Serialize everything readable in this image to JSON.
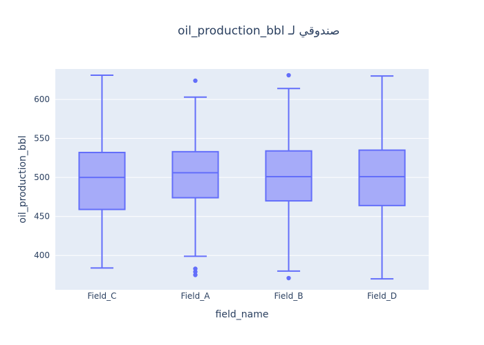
{
  "chart_data": {
    "type": "box",
    "title": "صندوقي لـ oil_production_bbl",
    "xlabel": "field_name",
    "ylabel": "oil_production_bbl",
    "categories": [
      "Field_C",
      "Field_A",
      "Field_B",
      "Field_D"
    ],
    "ylim": [
      356,
      639
    ],
    "yticks": [
      400,
      450,
      500,
      550,
      600
    ],
    "grid": true,
    "legend": "none",
    "boxes": [
      {
        "name": "Field_C",
        "lowerfence": 384,
        "q1": 459,
        "median": 500,
        "q3": 532,
        "upperfence": 631,
        "outliers": []
      },
      {
        "name": "Field_A",
        "lowerfence": 399,
        "q1": 474,
        "median": 506,
        "q3": 533,
        "upperfence": 603,
        "outliers": [
          624,
          383,
          379,
          375
        ]
      },
      {
        "name": "Field_B",
        "lowerfence": 380,
        "q1": 470,
        "median": 501,
        "q3": 534,
        "upperfence": 614,
        "outliers": [
          631,
          371
        ]
      },
      {
        "name": "Field_D",
        "lowerfence": 370,
        "q1": 464,
        "median": 501,
        "q3": 535,
        "upperfence": 630,
        "outliers": []
      }
    ],
    "colors": {
      "line": "#636efa",
      "fill": "#a6abf9",
      "plot_bg": "#e5ecf6",
      "grid": "#ffffff",
      "text": "#2a3f5f"
    }
  }
}
